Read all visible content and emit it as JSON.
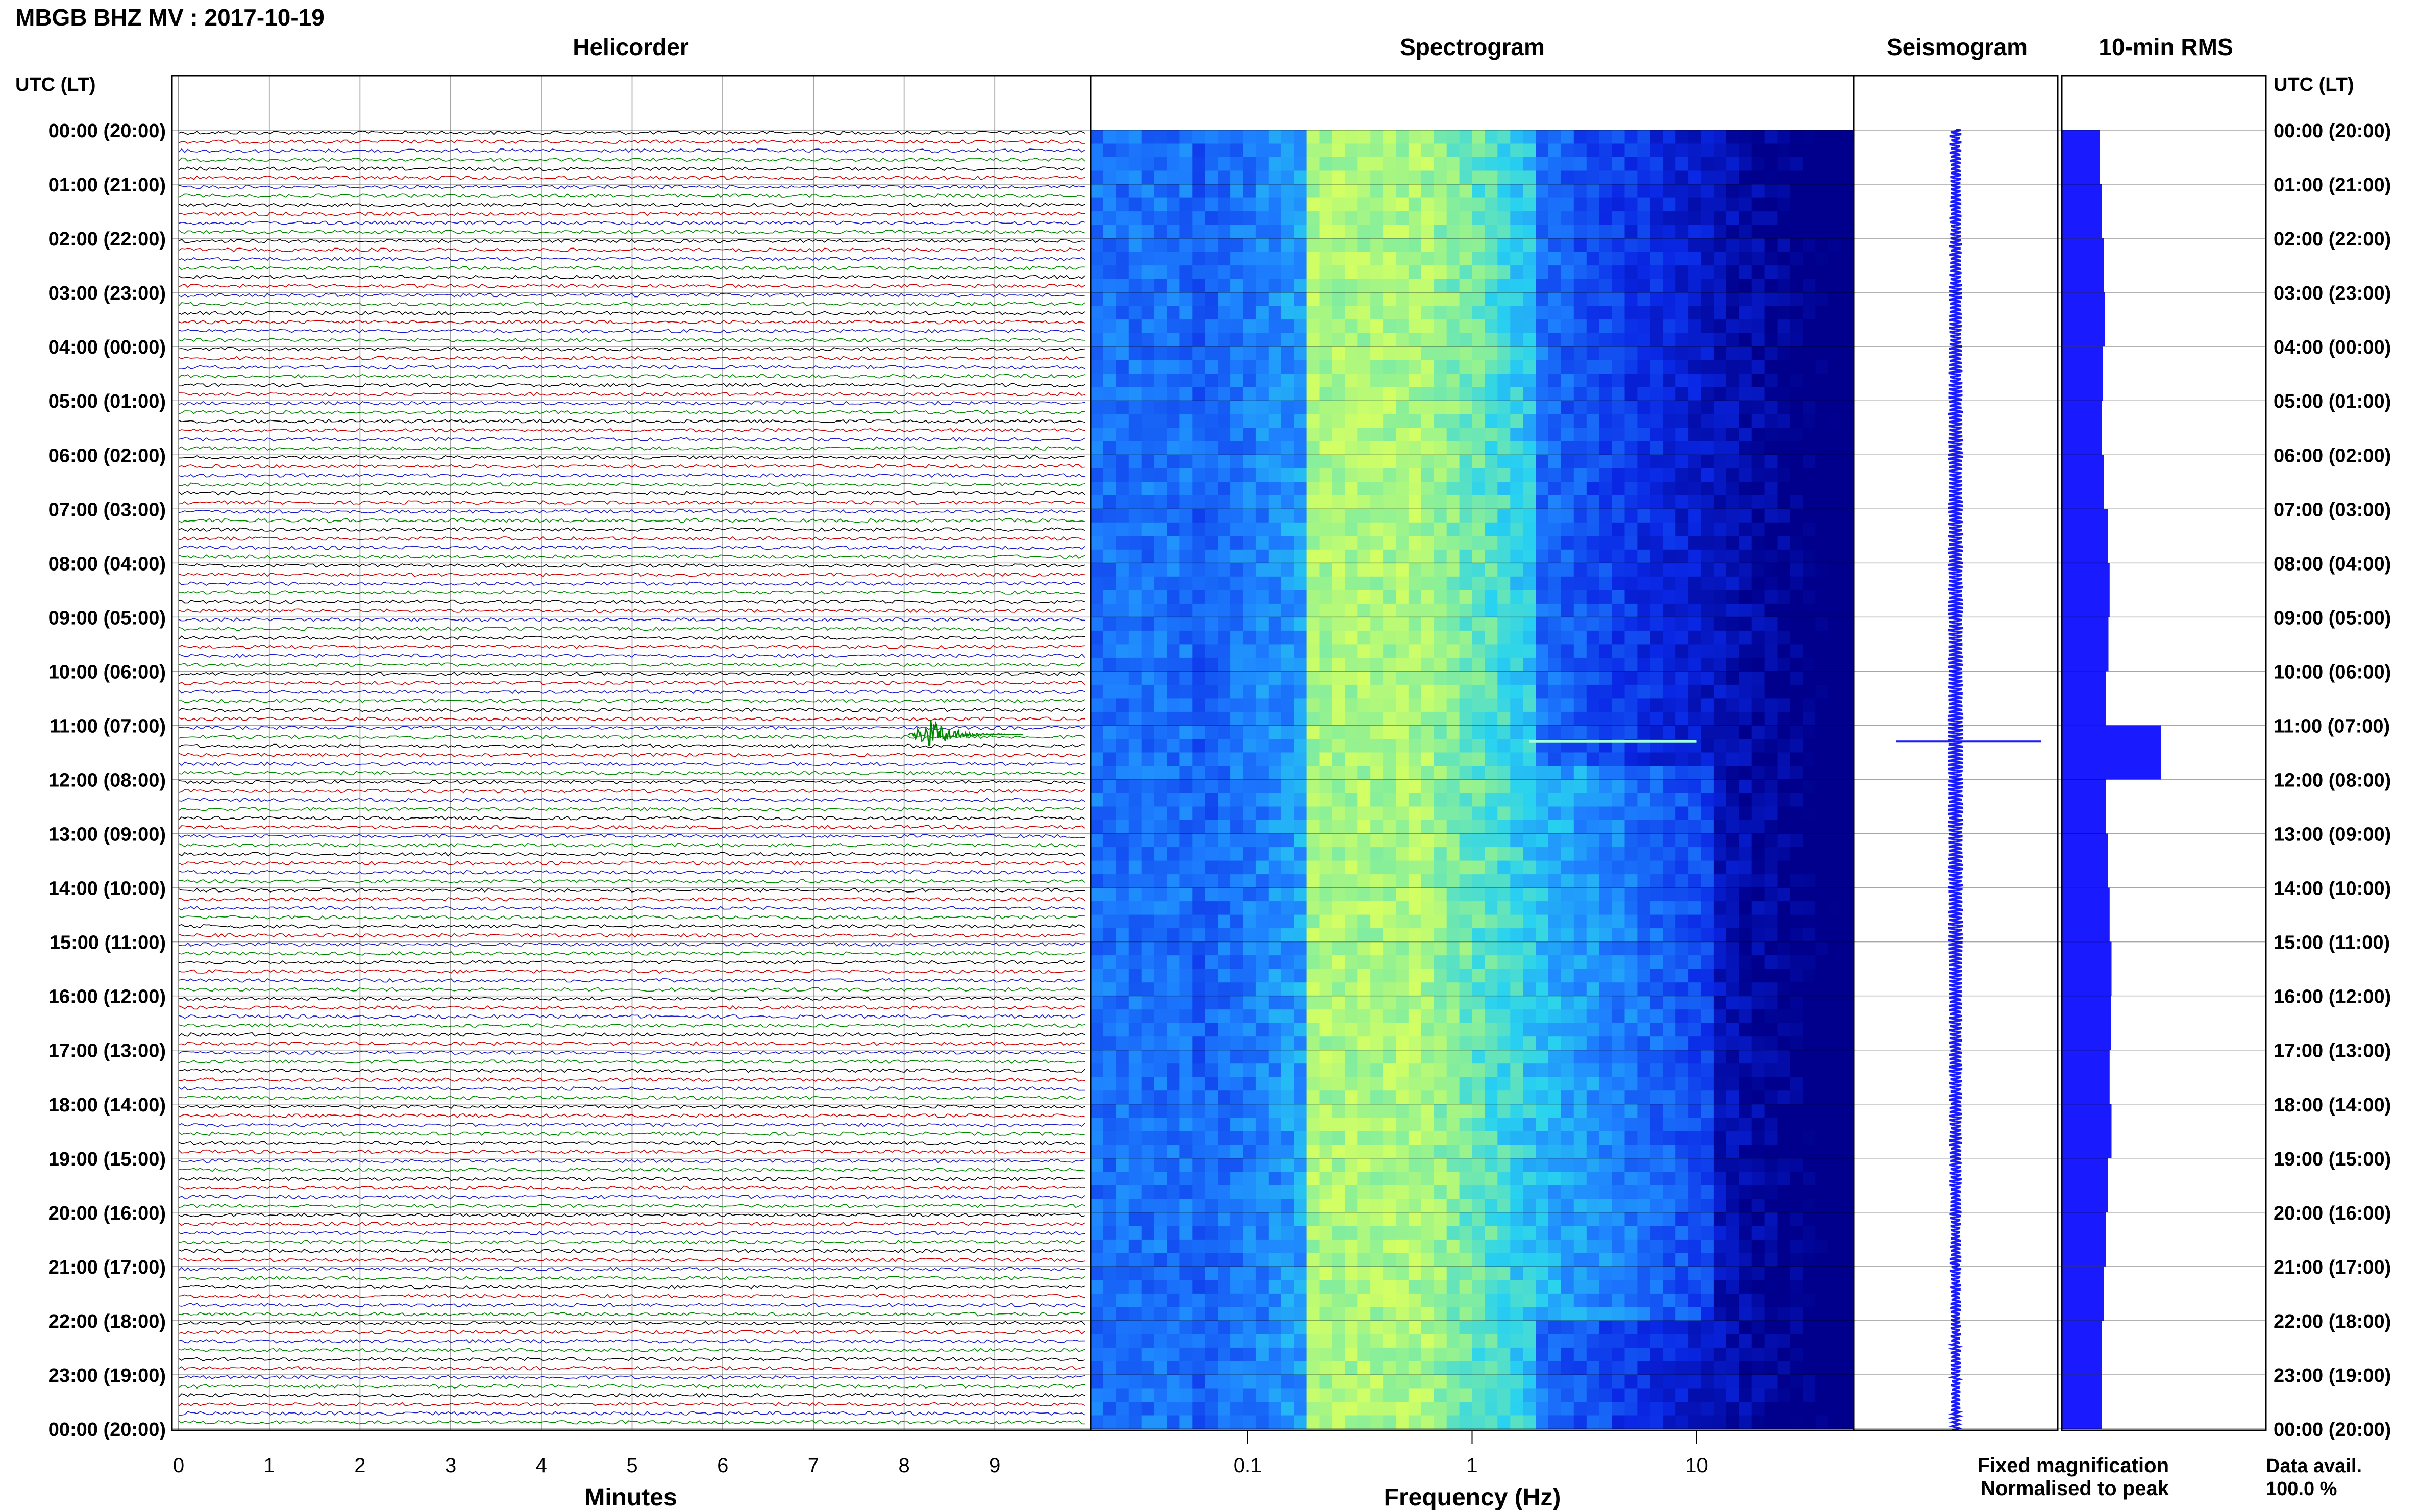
{
  "header": {
    "title": "MBGB BHZ MV : 2017-10-19"
  },
  "panels": {
    "helicorder": "Helicorder",
    "spectrogram": "Spectrogram",
    "seismogram": "Seismogram",
    "rms": "10-min RMS"
  },
  "axis": {
    "left_header": "UTC (LT)",
    "right_header": "UTC (LT)",
    "minutes_label": "Minutes",
    "frequency_label": "Frequency (Hz)"
  },
  "legend": {
    "fixed": "Fixed magnification",
    "normalised": "Normalised to peak",
    "fixed_color": "#1a1aff",
    "normalised_color": "#ff1a1a"
  },
  "data_avail": {
    "label": "Data avail.",
    "value": "100.0 %"
  },
  "colors": {
    "trace_cycle": [
      "#000000",
      "#cc0000",
      "#1a1acc",
      "#008800"
    ],
    "seismogram": "#1a1aff",
    "rms": "#1a1aff",
    "spectrogram_low": "#00008b",
    "spectrogram_high": "#c8ff6e"
  },
  "chart_data": [
    {
      "type": "line",
      "name": "helicorder",
      "title": "Helicorder",
      "xlabel": "Minutes",
      "x_ticks": [
        "0",
        "1",
        "2",
        "3",
        "4",
        "5",
        "6",
        "7",
        "8",
        "9"
      ],
      "xlim": [
        0,
        10
      ],
      "y_ticks": [
        "00:00 (20:00)",
        "01:00 (21:00)",
        "02:00 (22:00)",
        "03:00 (23:00)",
        "04:00 (00:00)",
        "05:00 (01:00)",
        "06:00 (02:00)",
        "07:00 (03:00)",
        "08:00 (04:00)",
        "09:00 (05:00)",
        "10:00 (06:00)",
        "11:00 (07:00)",
        "12:00 (08:00)",
        "13:00 (09:00)",
        "14:00 (10:00)",
        "15:00 (11:00)",
        "16:00 (12:00)",
        "17:00 (13:00)",
        "18:00 (14:00)",
        "19:00 (15:00)",
        "20:00 (16:00)",
        "21:00 (17:00)",
        "22:00 (18:00)",
        "23:00 (19:00)",
        "00:00 (20:00)"
      ],
      "rows_per_hour": 6,
      "event": {
        "hour": 11,
        "row_in_hour": 0,
        "minute": 8.3
      }
    },
    {
      "type": "heatmap",
      "name": "spectrogram",
      "title": "Spectrogram",
      "xlabel": "Frequency (Hz)",
      "x_scale": "log",
      "xlim": [
        0.02,
        50
      ],
      "x_ticks": [
        "0.1",
        "1",
        "10"
      ]
    },
    {
      "type": "line",
      "name": "seismogram",
      "title": "Seismogram",
      "event_hour": 11.3
    },
    {
      "type": "bar",
      "name": "rms",
      "title": "10-min RMS",
      "hours": [
        0,
        1,
        2,
        3,
        4,
        5,
        6,
        7,
        8,
        9,
        10,
        11,
        12,
        13,
        14,
        15,
        16,
        17,
        18,
        19,
        20,
        21,
        22,
        23
      ],
      "values": [
        1.0,
        1.05,
        1.1,
        1.12,
        1.08,
        1.05,
        1.1,
        1.2,
        1.25,
        1.22,
        1.15,
        2.6,
        1.15,
        1.2,
        1.25,
        1.3,
        1.28,
        1.25,
        1.3,
        1.2,
        1.15,
        1.1,
        1.05,
        1.05
      ]
    }
  ]
}
